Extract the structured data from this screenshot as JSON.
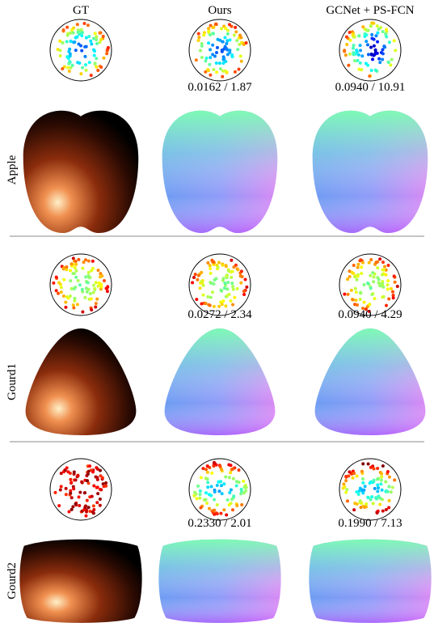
{
  "columns": [
    "GT",
    "Ours",
    "GCNet + PS-FCN"
  ],
  "rows": [
    {
      "label": "Apple",
      "metrics": [
        "0.0162 / 1.87",
        "0.0940 / 10.91"
      ]
    },
    {
      "label": "Gourd1",
      "metrics": [
        "0.0272 / 2.34",
        "0.0940 / 4.29"
      ]
    },
    {
      "label": "Gourd2",
      "metrics": [
        "0.2330 / 2.01",
        "0.1990 / 7.13"
      ]
    }
  ]
}
